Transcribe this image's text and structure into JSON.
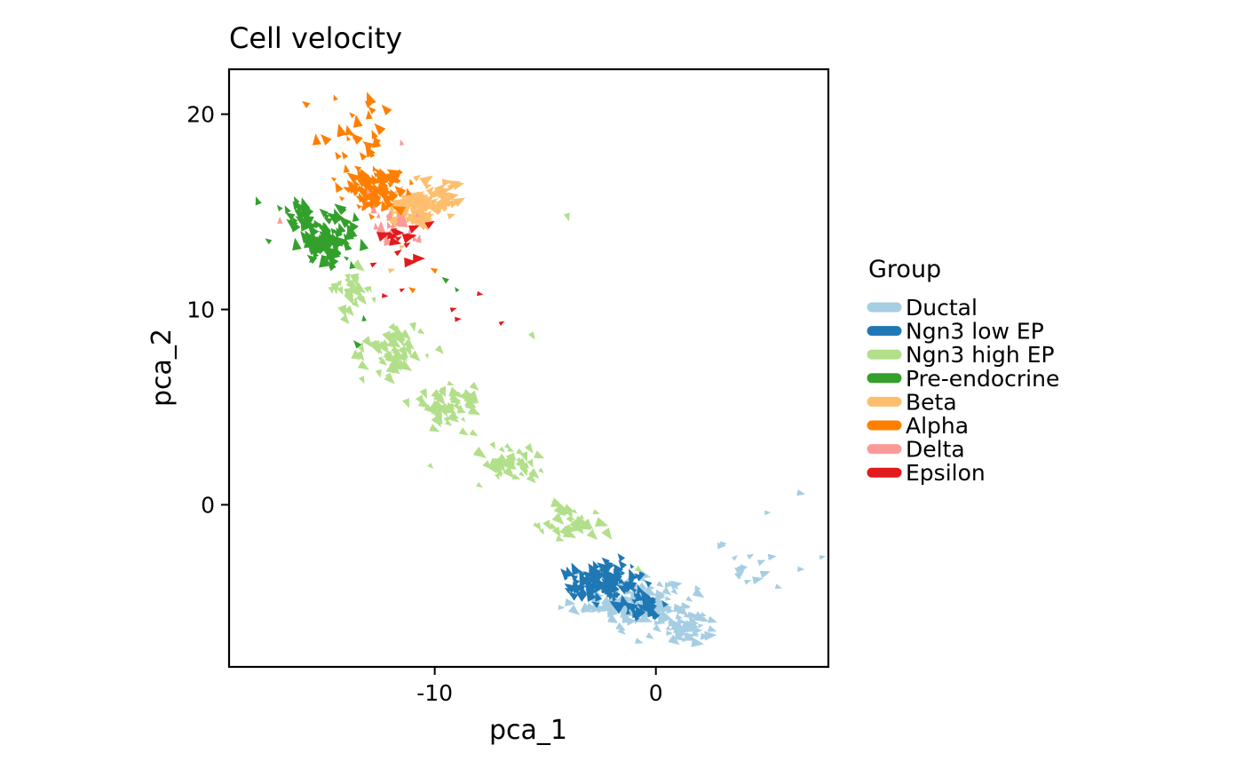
{
  "chart_data": {
    "type": "scatter",
    "title": "Cell velocity",
    "xlabel": "pca_1",
    "ylabel": "pca_2",
    "xlim": [
      -19.3,
      7.8
    ],
    "ylim": [
      -8.3,
      22.3
    ],
    "xticks": [
      -10,
      0
    ],
    "xtick_labels": [
      "-10",
      "0"
    ],
    "yticks": [
      0,
      10,
      20
    ],
    "ytick_labels": [
      "0",
      "10",
      "20"
    ],
    "grid": false,
    "marker": "velocity-arrow-triangle",
    "legend": {
      "title": "Group",
      "placement": "right"
    },
    "series": [
      {
        "name": "Ductal",
        "color": "#A6CEE3",
        "clusters": [
          {
            "center": [
              -1.0,
              -5.0
            ],
            "spread": [
              2.2,
              1.2
            ],
            "count": 140,
            "direction": [
              1,
              -0.3
            ]
          },
          {
            "center": [
              1.5,
              -6.3
            ],
            "spread": [
              1.3,
              0.7
            ],
            "count": 50,
            "direction": [
              1,
              -0.2
            ]
          },
          {
            "center": [
              4.0,
              -3.5
            ],
            "spread": [
              1.8,
              1.2
            ],
            "count": 12,
            "direction": [
              1,
              0.4
            ]
          }
        ],
        "points": [
          [
            6.5,
            0.6
          ],
          [
            5.0,
            -0.4
          ],
          [
            6.5,
            -3.3
          ],
          [
            5.5,
            -4.2
          ],
          [
            3.0,
            -2.0
          ],
          [
            2.9,
            -2.1
          ]
        ]
      },
      {
        "name": "Ngn3 low EP",
        "color": "#1F78B4",
        "clusters": [
          {
            "center": [
              -2.3,
              -4.0
            ],
            "spread": [
              1.5,
              1.0
            ],
            "count": 120,
            "direction": [
              -0.6,
              0.8
            ]
          },
          {
            "center": [
              -0.5,
              -5.3
            ],
            "spread": [
              1.0,
              0.6
            ],
            "count": 30,
            "direction": [
              -0.5,
              0.9
            ]
          }
        ],
        "points": []
      },
      {
        "name": "Ngn3 high EP",
        "color": "#B2DF8A",
        "clusters": [
          {
            "center": [
              -12.0,
              8.0
            ],
            "spread": [
              1.2,
              1.2
            ],
            "count": 70,
            "direction": [
              0.6,
              -0.8
            ]
          },
          {
            "center": [
              -9.5,
              5.0
            ],
            "spread": [
              1.2,
              1.0
            ],
            "count": 60,
            "direction": [
              0.7,
              -0.7
            ]
          },
          {
            "center": [
              -6.5,
              2.0
            ],
            "spread": [
              1.2,
              1.0
            ],
            "count": 45,
            "direction": [
              0.7,
              -0.7
            ]
          },
          {
            "center": [
              -4.0,
              -1.0
            ],
            "spread": [
              1.2,
              0.8
            ],
            "count": 35,
            "direction": [
              0.8,
              -0.6
            ]
          },
          {
            "center": [
              -13.8,
              11.0
            ],
            "spread": [
              0.9,
              0.9
            ],
            "count": 30,
            "direction": [
              0.5,
              -0.8
            ]
          }
        ],
        "points": [
          [
            -4.0,
            14.8
          ],
          [
            -5.6,
            8.7
          ],
          [
            -10.2,
            2.0
          ],
          [
            -8.0,
            1.0
          ],
          [
            -0.8,
            -3.3
          ]
        ]
      },
      {
        "name": "Pre-endocrine",
        "color": "#33A02C",
        "clusters": [
          {
            "center": [
              -14.8,
              13.5
            ],
            "spread": [
              1.0,
              1.2
            ],
            "count": 110,
            "direction": [
              -0.5,
              0.8
            ]
          },
          {
            "center": [
              -16.0,
              15.0
            ],
            "spread": [
              0.8,
              0.6
            ],
            "count": 25,
            "direction": [
              -0.6,
              0.7
            ]
          }
        ],
        "points": [
          [
            -13.5,
            8.2
          ],
          [
            -13.2,
            9.5
          ],
          [
            -9.5,
            11.5
          ],
          [
            -9.0,
            11.0
          ],
          [
            -18.0,
            15.5
          ],
          [
            -17.5,
            13.5
          ]
        ]
      },
      {
        "name": "Beta",
        "color": "#FDBF6F",
        "clusters": [
          {
            "center": [
              -11.0,
              15.3
            ],
            "spread": [
              1.2,
              1.0
            ],
            "count": 90,
            "direction": [
              0.8,
              0.5
            ]
          },
          {
            "center": [
              -9.5,
              15.8
            ],
            "spread": [
              0.8,
              0.8
            ],
            "count": 25,
            "direction": [
              0.8,
              0.5
            ]
          }
        ],
        "points": [
          [
            -12.0,
            12.0
          ],
          [
            -11.5,
            13.2
          ]
        ]
      },
      {
        "name": "Alpha",
        "color": "#FF7F00",
        "clusters": [
          {
            "center": [
              -12.8,
              16.2
            ],
            "spread": [
              1.2,
              1.0
            ],
            "count": 90,
            "direction": [
              -0.6,
              0.7
            ]
          },
          {
            "center": [
              -13.5,
              18.6
            ],
            "spread": [
              1.2,
              1.0
            ],
            "count": 25,
            "direction": [
              -0.5,
              0.8
            ]
          }
        ],
        "points": [
          [
            -15.8,
            20.5
          ],
          [
            -14.5,
            20.8
          ],
          [
            -13.0,
            20.5
          ],
          [
            -11.0,
            11.0
          ],
          [
            -10.0,
            12.0
          ]
        ]
      },
      {
        "name": "Delta",
        "color": "#FB9A99",
        "clusters": [
          {
            "center": [
              -11.8,
              14.0
            ],
            "spread": [
              1.0,
              1.2
            ],
            "count": 22,
            "direction": [
              0.0,
              1.0
            ]
          }
        ],
        "points": [
          [
            -11.5,
            18.5
          ],
          [
            -17.0,
            14.5
          ],
          [
            -13.0,
            16.0
          ]
        ]
      },
      {
        "name": "Epsilon",
        "color": "#E31A1C",
        "clusters": [
          {
            "center": [
              -11.5,
              13.8
            ],
            "spread": [
              0.9,
              1.0
            ],
            "count": 14,
            "direction": [
              1.0,
              0.2
            ]
          }
        ],
        "points": [
          [
            -12.3,
            10.7
          ],
          [
            -11.5,
            11.0
          ],
          [
            -9.2,
            10.0
          ],
          [
            -8.0,
            10.8
          ],
          [
            -9.0,
            9.5
          ],
          [
            -7.0,
            9.3
          ],
          [
            -12.8,
            12.3
          ]
        ]
      }
    ]
  }
}
